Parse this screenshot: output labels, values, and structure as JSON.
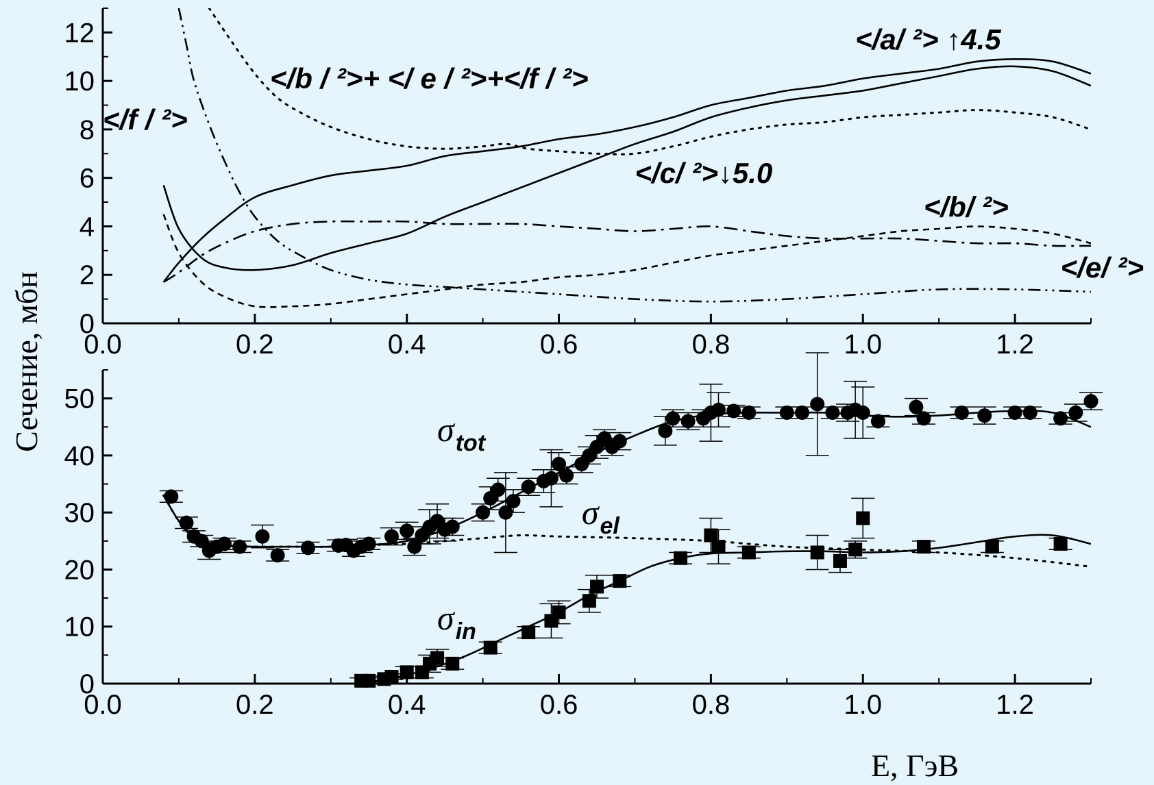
{
  "chart_data": [
    {
      "type": "line",
      "panel": "top",
      "ylabel": "Сечение, мбн",
      "xlim": [
        0.0,
        1.3
      ],
      "ylim": [
        0,
        13
      ],
      "xticks": [
        "0.0",
        "0.2",
        "0.4",
        "0.6",
        "0.8",
        "1.0",
        "1.2"
      ],
      "yticks": [
        "0",
        "2",
        "4",
        "6",
        "8",
        "10",
        "12"
      ],
      "grid": false,
      "series": [
        {
          "id": "a2",
          "label": "</a/ ²> ↑4.5",
          "style": "solid",
          "x": [
            0.08,
            0.1,
            0.13,
            0.16,
            0.2,
            0.25,
            0.3,
            0.35,
            0.4,
            0.45,
            0.5,
            0.55,
            0.6,
            0.65,
            0.7,
            0.75,
            0.8,
            0.85,
            0.9,
            0.95,
            1.0,
            1.05,
            1.1,
            1.15,
            1.2,
            1.25,
            1.3
          ],
          "y": [
            1.7,
            2.5,
            3.5,
            4.3,
            5.2,
            5.7,
            6.1,
            6.3,
            6.5,
            6.9,
            7.1,
            7.3,
            7.6,
            7.8,
            8.1,
            8.5,
            9.0,
            9.3,
            9.6,
            9.8,
            10.1,
            10.3,
            10.5,
            10.8,
            10.9,
            10.8,
            10.3
          ]
        },
        {
          "id": "c2",
          "label": "</c/ ²>↓5.0",
          "style": "solid",
          "x": [
            0.08,
            0.1,
            0.13,
            0.16,
            0.2,
            0.25,
            0.3,
            0.35,
            0.4,
            0.45,
            0.5,
            0.55,
            0.6,
            0.65,
            0.7,
            0.75,
            0.8,
            0.85,
            0.9,
            0.95,
            1.0,
            1.05,
            1.1,
            1.15,
            1.2,
            1.25,
            1.3
          ],
          "y": [
            5.7,
            3.9,
            2.7,
            2.3,
            2.2,
            2.4,
            2.9,
            3.3,
            3.7,
            4.4,
            5.0,
            5.6,
            6.2,
            6.8,
            7.4,
            7.9,
            8.5,
            8.9,
            9.2,
            9.4,
            9.6,
            9.9,
            10.2,
            10.5,
            10.6,
            10.4,
            9.8
          ]
        },
        {
          "id": "bef2",
          "label": "</b / ²>+ </ e / ²>+</f / ²>",
          "style": "dotted",
          "x": [
            0.14,
            0.17,
            0.2,
            0.23,
            0.26,
            0.3,
            0.35,
            0.4,
            0.45,
            0.5,
            0.53,
            0.56,
            0.6,
            0.65,
            0.7,
            0.75,
            0.8,
            0.85,
            0.9,
            0.95,
            1.0,
            1.05,
            1.1,
            1.15,
            1.2,
            1.25,
            1.3
          ],
          "y": [
            13.0,
            11.6,
            10.3,
            9.3,
            8.7,
            8.1,
            7.6,
            7.3,
            7.2,
            7.3,
            7.4,
            7.2,
            7.1,
            7.0,
            7.0,
            7.3,
            7.7,
            8.0,
            8.2,
            8.3,
            8.5,
            8.6,
            8.7,
            8.8,
            8.7,
            8.5,
            8.0
          ]
        },
        {
          "id": "f2",
          "label": "</f / ²>",
          "style": "dash-dot-dot",
          "x": [
            0.1,
            0.11,
            0.12,
            0.14,
            0.16,
            0.18,
            0.2,
            0.23,
            0.26,
            0.3,
            0.35,
            0.4,
            0.45,
            0.5,
            0.6,
            0.7,
            0.8,
            0.9,
            1.0,
            1.1,
            1.2,
            1.3
          ],
          "y": [
            13.0,
            11.5,
            10.0,
            8.2,
            6.7,
            5.4,
            4.4,
            3.4,
            2.8,
            2.2,
            1.8,
            1.6,
            1.5,
            1.4,
            1.2,
            1.0,
            0.9,
            1.0,
            1.2,
            1.4,
            1.4,
            1.3
          ]
        },
        {
          "id": "b2",
          "label": "</b/ ²>",
          "style": "dashed",
          "x": [
            0.08,
            0.1,
            0.13,
            0.16,
            0.2,
            0.25,
            0.3,
            0.35,
            0.4,
            0.45,
            0.5,
            0.55,
            0.6,
            0.65,
            0.7,
            0.75,
            0.8,
            0.85,
            0.9,
            0.95,
            1.0,
            1.05,
            1.1,
            1.15,
            1.2,
            1.25,
            1.3
          ],
          "y": [
            4.5,
            2.9,
            1.7,
            1.1,
            0.7,
            0.7,
            0.8,
            1.0,
            1.2,
            1.4,
            1.6,
            1.7,
            1.9,
            2.0,
            2.2,
            2.5,
            2.8,
            3.0,
            3.2,
            3.4,
            3.6,
            3.8,
            3.9,
            4.0,
            3.9,
            3.7,
            3.3
          ]
        },
        {
          "id": "e2",
          "label": "</e/ ²>",
          "style": "dash-dot",
          "x": [
            0.08,
            0.1,
            0.13,
            0.16,
            0.2,
            0.25,
            0.3,
            0.35,
            0.4,
            0.45,
            0.5,
            0.55,
            0.6,
            0.65,
            0.7,
            0.75,
            0.8,
            0.85,
            0.9,
            0.95,
            1.0,
            1.05,
            1.1,
            1.15,
            1.2,
            1.25,
            1.3
          ],
          "y": [
            1.7,
            2.1,
            2.8,
            3.3,
            3.8,
            4.1,
            4.2,
            4.2,
            4.2,
            4.1,
            4.1,
            4.1,
            4.0,
            3.9,
            3.8,
            3.9,
            4.0,
            3.8,
            3.6,
            3.5,
            3.5,
            3.5,
            3.4,
            3.3,
            3.3,
            3.2,
            3.2
          ]
        }
      ],
      "annotations": [
        {
          "text": "</a/ ²> ↑4.5",
          "x": 0.99,
          "y": 11.3
        },
        {
          "text": "</b / ²>+ </ e / ²>+</f / ²>",
          "x": 0.22,
          "y": 9.7
        },
        {
          "text": "</f / ²>",
          "x": 0.0,
          "y": 8.0
        },
        {
          "text": "</c/ ²>↓5.0",
          "x": 0.7,
          "y": 5.8
        },
        {
          "text": "</b/ ²>",
          "x": 1.08,
          "y": 4.4
        },
        {
          "text": "</e/ ²>",
          "x": 1.26,
          "y": 1.9
        }
      ]
    },
    {
      "type": "scatter",
      "panel": "bottom",
      "xlabel": "E, ГэВ",
      "ylabel": "Сечение, мбн",
      "xlim": [
        0.0,
        1.3
      ],
      "ylim": [
        0,
        55
      ],
      "xticks": [
        "0.0",
        "0.2",
        "0.4",
        "0.6",
        "0.8",
        "1.0",
        "1.2"
      ],
      "yticks": [
        "0",
        "10",
        "20",
        "30",
        "40",
        "50"
      ],
      "grid": false,
      "series": [
        {
          "id": "tot_pts",
          "label_main": "σ",
          "label_sub": "tot",
          "marker": "circle",
          "x": [
            0.09,
            0.11,
            0.12,
            0.13,
            0.14,
            0.15,
            0.16,
            0.18,
            0.21,
            0.23,
            0.27,
            0.31,
            0.32,
            0.33,
            0.34,
            0.35,
            0.38,
            0.4,
            0.41,
            0.42,
            0.43,
            0.44,
            0.45,
            0.46,
            0.5,
            0.51,
            0.52,
            0.53,
            0.54,
            0.56,
            0.58,
            0.59,
            0.6,
            0.61,
            0.63,
            0.64,
            0.65,
            0.66,
            0.67,
            0.68,
            0.74,
            0.75,
            0.77,
            0.79,
            0.8,
            0.81,
            0.83,
            0.85,
            0.9,
            0.92,
            0.94,
            0.96,
            0.98,
            0.99,
            1.0,
            1.02,
            1.07,
            1.08,
            1.13,
            1.16,
            1.2,
            1.22,
            1.26,
            1.28,
            1.3
          ],
          "y": [
            32.8,
            28.2,
            25.8,
            25.0,
            23.3,
            24.0,
            24.5,
            24.0,
            25.8,
            22.5,
            23.8,
            24.2,
            24.3,
            23.3,
            24.0,
            24.5,
            25.8,
            26.8,
            24.0,
            26.0,
            27.5,
            28.5,
            27.0,
            27.5,
            30.0,
            32.5,
            34.0,
            30.0,
            32.0,
            34.5,
            35.5,
            36.0,
            38.5,
            36.5,
            38.5,
            40.0,
            41.5,
            43.0,
            41.5,
            42.5,
            44.3,
            46.5,
            46.0,
            46.5,
            47.5,
            48.0,
            47.8,
            47.5,
            47.5,
            47.5,
            49.0,
            47.5,
            47.5,
            48.0,
            47.5,
            46.0,
            48.5,
            46.5,
            47.5,
            47.0,
            47.5,
            47.5,
            46.5,
            47.5,
            49.5
          ],
          "yerr": [
            1.0,
            1.0,
            1.0,
            1.0,
            1.5,
            1.0,
            1.0,
            1.0,
            2.0,
            1.0,
            1.0,
            1.0,
            1.0,
            1.0,
            1.0,
            1.0,
            1.5,
            1.5,
            1.5,
            1.5,
            3.0,
            3.0,
            2.0,
            1.5,
            1.5,
            2.0,
            2.0,
            7.0,
            2.0,
            1.5,
            2.0,
            5.0,
            2.0,
            1.5,
            1.5,
            1.5,
            2.0,
            1.5,
            1.5,
            1.5,
            2.5,
            1.5,
            1.5,
            1.5,
            5.0,
            3.0,
            1.0,
            1.0,
            1.0,
            1.0,
            9.0,
            1.0,
            1.5,
            5.0,
            4.5,
            1.0,
            1.5,
            1.0,
            1.0,
            1.5,
            1.0,
            1.0,
            1.0,
            1.5,
            1.5
          ]
        },
        {
          "id": "in_pts",
          "label_main": "σ",
          "label_sub": "in",
          "marker": "square",
          "x": [
            0.34,
            0.35,
            0.37,
            0.38,
            0.4,
            0.42,
            0.43,
            0.44,
            0.46,
            0.51,
            0.56,
            0.59,
            0.6,
            0.64,
            0.65,
            0.68,
            0.76,
            0.8,
            0.81,
            0.85,
            0.94,
            0.97,
            0.99,
            1.0,
            1.08,
            1.17,
            1.26
          ],
          "y": [
            0.5,
            0.5,
            0.8,
            1.2,
            2.0,
            2.0,
            3.5,
            4.5,
            3.5,
            6.3,
            9.0,
            11.0,
            12.5,
            14.5,
            17.0,
            18.0,
            22.0,
            26.0,
            24.0,
            23.0,
            23.0,
            21.5,
            23.5,
            29.0,
            24.0,
            24.0,
            24.5
          ],
          "yerr": [
            0.5,
            0.5,
            0.5,
            0.5,
            1.0,
            1.0,
            1.5,
            1.5,
            1.0,
            1.0,
            1.0,
            3.0,
            2.0,
            2.0,
            2.0,
            1.0,
            1.0,
            3.0,
            3.0,
            1.0,
            3.0,
            2.0,
            1.5,
            3.5,
            1.0,
            1.0,
            1.0
          ]
        },
        {
          "id": "tot_fit",
          "style": "solid",
          "x": [
            0.08,
            0.1,
            0.12,
            0.14,
            0.16,
            0.2,
            0.25,
            0.3,
            0.35,
            0.4,
            0.45,
            0.5,
            0.55,
            0.6,
            0.65,
            0.7,
            0.75,
            0.8,
            0.85,
            0.9,
            0.95,
            1.0,
            1.05,
            1.1,
            1.15,
            1.2,
            1.25,
            1.3
          ],
          "y": [
            33.0,
            28.5,
            25.5,
            24.5,
            24.2,
            24.0,
            24.0,
            24.0,
            24.3,
            25.0,
            27.0,
            30.0,
            33.5,
            37.0,
            40.5,
            43.5,
            46.0,
            47.2,
            47.5,
            47.5,
            47.5,
            47.0,
            46.8,
            47.0,
            47.5,
            47.8,
            47.5,
            45.0
          ]
        },
        {
          "id": "el_fit",
          "label_main": "σ",
          "label_sub": "el",
          "style": "dotted",
          "x": [
            0.08,
            0.1,
            0.12,
            0.14,
            0.16,
            0.2,
            0.25,
            0.3,
            0.35,
            0.4,
            0.45,
            0.5,
            0.55,
            0.6,
            0.7,
            0.8,
            0.9,
            1.0,
            1.1,
            1.2,
            1.3
          ],
          "y": [
            33.0,
            28.5,
            25.5,
            24.5,
            24.2,
            24.0,
            24.0,
            24.0,
            24.3,
            24.5,
            25.0,
            25.5,
            26.0,
            25.8,
            25.5,
            25.0,
            24.0,
            23.5,
            23.0,
            22.0,
            20.5
          ]
        },
        {
          "id": "in_fit",
          "style": "solid",
          "x": [
            0.33,
            0.36,
            0.4,
            0.44,
            0.48,
            0.52,
            0.56,
            0.6,
            0.64,
            0.68,
            0.72,
            0.76,
            0.8,
            0.85,
            0.9,
            0.95,
            1.0,
            1.05,
            1.1,
            1.15,
            1.2,
            1.25,
            1.3
          ],
          "y": [
            0.0,
            0.5,
            1.5,
            3.0,
            5.0,
            7.5,
            10.0,
            12.5,
            15.5,
            18.0,
            20.5,
            22.0,
            22.8,
            23.0,
            23.2,
            23.2,
            23.0,
            23.2,
            23.8,
            24.8,
            25.8,
            26.0,
            24.5
          ]
        }
      ],
      "annotations": [
        {
          "text_main": "σ",
          "text_sub": "tot",
          "x": 0.44,
          "y": 42.5
        },
        {
          "text_main": "σ",
          "text_sub": "el",
          "x": 0.63,
          "y": 28.0
        },
        {
          "text_main": "σ",
          "text_sub": "in",
          "x": 0.44,
          "y": 9.5
        }
      ]
    }
  ]
}
